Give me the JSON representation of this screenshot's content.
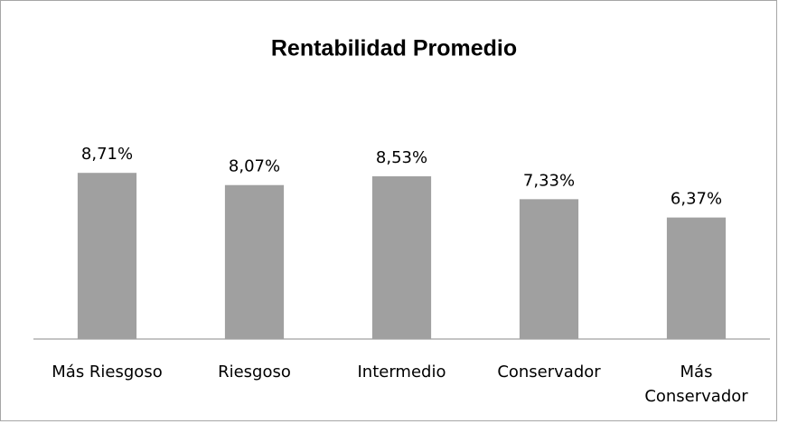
{
  "chart_data": {
    "type": "bar",
    "title": "Rentabilidad Promedio",
    "categories": [
      "Más Riesgoso",
      "Riesgoso",
      "Intermedio",
      "Conservador",
      "Más Conservador"
    ],
    "values": [
      8.71,
      8.07,
      8.53,
      7.33,
      6.37
    ],
    "value_labels": [
      "8,71%",
      "8,07%",
      "8,53%",
      "7,33%",
      "6,37%"
    ],
    "color": "#a0a0a0",
    "ylim": [
      0,
      10
    ]
  }
}
